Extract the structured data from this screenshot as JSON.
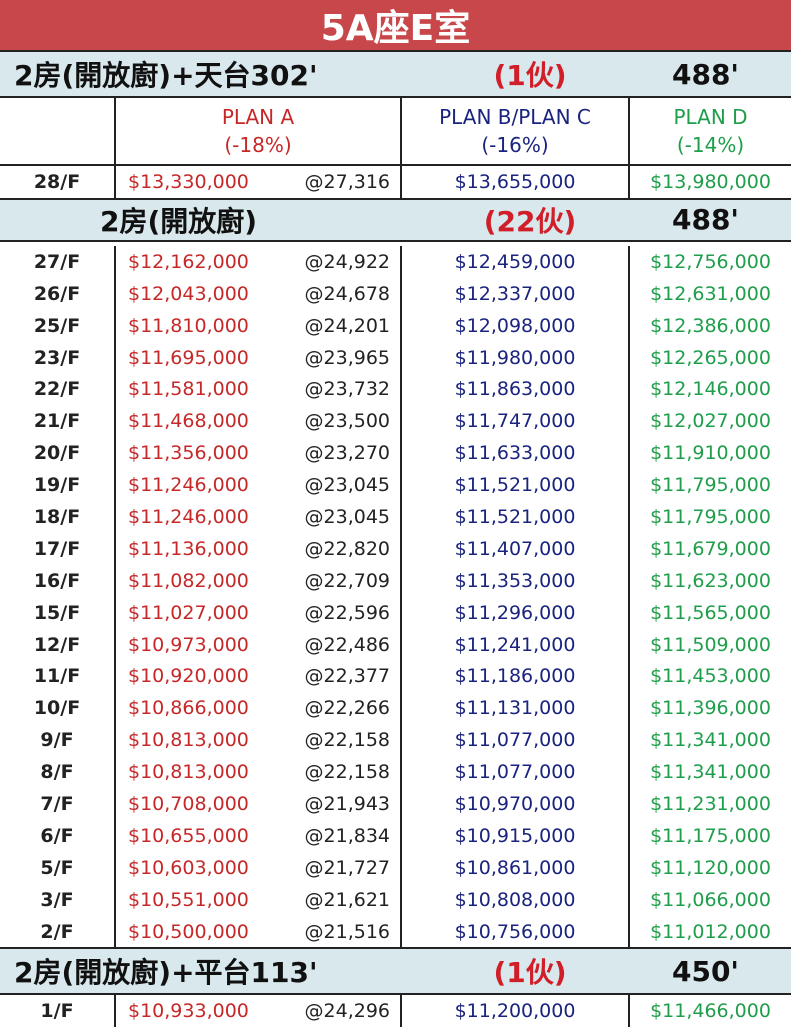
{
  "title": "5A座E室",
  "headers": {
    "plan_a": {
      "name": "PLAN A",
      "disc": "(-18%)"
    },
    "plan_b": {
      "name": "PLAN B/PLAN C",
      "disc": "(-16%)"
    },
    "plan_d": {
      "name": "PLAN D",
      "disc": "(-14%)"
    }
  },
  "sections": [
    {
      "label": "2房(開放廚)+天台302'",
      "count": "(1伙)",
      "area": "488'",
      "rows": [
        {
          "floor": "28/F",
          "a": "$13,330,000",
          "psf": "@27,316",
          "b": "$13,655,000",
          "d": "$13,980,000"
        }
      ]
    },
    {
      "label": "2房(開放廚)",
      "count": "(22伙)",
      "area": "488'",
      "rows": [
        {
          "floor": "27/F",
          "a": "$12,162,000",
          "psf": "@24,922",
          "b": "$12,459,000",
          "d": "$12,756,000"
        },
        {
          "floor": "26/F",
          "a": "$12,043,000",
          "psf": "@24,678",
          "b": "$12,337,000",
          "d": "$12,631,000"
        },
        {
          "floor": "25/F",
          "a": "$11,810,000",
          "psf": "@24,201",
          "b": "$12,098,000",
          "d": "$12,386,000"
        },
        {
          "floor": "23/F",
          "a": "$11,695,000",
          "psf": "@23,965",
          "b": "$11,980,000",
          "d": "$12,265,000"
        },
        {
          "floor": "22/F",
          "a": "$11,581,000",
          "psf": "@23,732",
          "b": "$11,863,000",
          "d": "$12,146,000"
        },
        {
          "floor": "21/F",
          "a": "$11,468,000",
          "psf": "@23,500",
          "b": "$11,747,000",
          "d": "$12,027,000"
        },
        {
          "floor": "20/F",
          "a": "$11,356,000",
          "psf": "@23,270",
          "b": "$11,633,000",
          "d": "$11,910,000"
        },
        {
          "floor": "19/F",
          "a": "$11,246,000",
          "psf": "@23,045",
          "b": "$11,521,000",
          "d": "$11,795,000"
        },
        {
          "floor": "18/F",
          "a": "$11,246,000",
          "psf": "@23,045",
          "b": "$11,521,000",
          "d": "$11,795,000"
        },
        {
          "floor": "17/F",
          "a": "$11,136,000",
          "psf": "@22,820",
          "b": "$11,407,000",
          "d": "$11,679,000"
        },
        {
          "floor": "16/F",
          "a": "$11,082,000",
          "psf": "@22,709",
          "b": "$11,353,000",
          "d": "$11,623,000"
        },
        {
          "floor": "15/F",
          "a": "$11,027,000",
          "psf": "@22,596",
          "b": "$11,296,000",
          "d": "$11,565,000"
        },
        {
          "floor": "12/F",
          "a": "$10,973,000",
          "psf": "@22,486",
          "b": "$11,241,000",
          "d": "$11,509,000"
        },
        {
          "floor": "11/F",
          "a": "$10,920,000",
          "psf": "@22,377",
          "b": "$11,186,000",
          "d": "$11,453,000"
        },
        {
          "floor": "10/F",
          "a": "$10,866,000",
          "psf": "@22,266",
          "b": "$11,131,000",
          "d": "$11,396,000"
        },
        {
          "floor": "9/F",
          "a": "$10,813,000",
          "psf": "@22,158",
          "b": "$11,077,000",
          "d": "$11,341,000"
        },
        {
          "floor": "8/F",
          "a": "$10,813,000",
          "psf": "@22,158",
          "b": "$11,077,000",
          "d": "$11,341,000"
        },
        {
          "floor": "7/F",
          "a": "$10,708,000",
          "psf": "@21,943",
          "b": "$10,970,000",
          "d": "$11,231,000"
        },
        {
          "floor": "6/F",
          "a": "$10,655,000",
          "psf": "@21,834",
          "b": "$10,915,000",
          "d": "$11,175,000"
        },
        {
          "floor": "5/F",
          "a": "$10,603,000",
          "psf": "@21,727",
          "b": "$10,861,000",
          "d": "$11,120,000"
        },
        {
          "floor": "3/F",
          "a": "$10,551,000",
          "psf": "@21,621",
          "b": "$10,808,000",
          "d": "$11,066,000"
        },
        {
          "floor": "2/F",
          "a": "$10,500,000",
          "psf": "@21,516",
          "b": "$10,756,000",
          "d": "$11,012,000"
        }
      ]
    },
    {
      "label": "2房(開放廚)+平台113'",
      "count": "(1伙)",
      "area": "450'",
      "rows": [
        {
          "floor": "1/F",
          "a": "$10,933,000",
          "psf": "@24,296",
          "b": "$11,200,000",
          "d": "$11,466,000"
        }
      ]
    }
  ],
  "colors": {
    "plan_a": "#c62828",
    "plan_b": "#1a237e",
    "plan_d": "#1e9e4a",
    "title_bg": "#c8474a",
    "section_bg": "#d9e8ec"
  }
}
